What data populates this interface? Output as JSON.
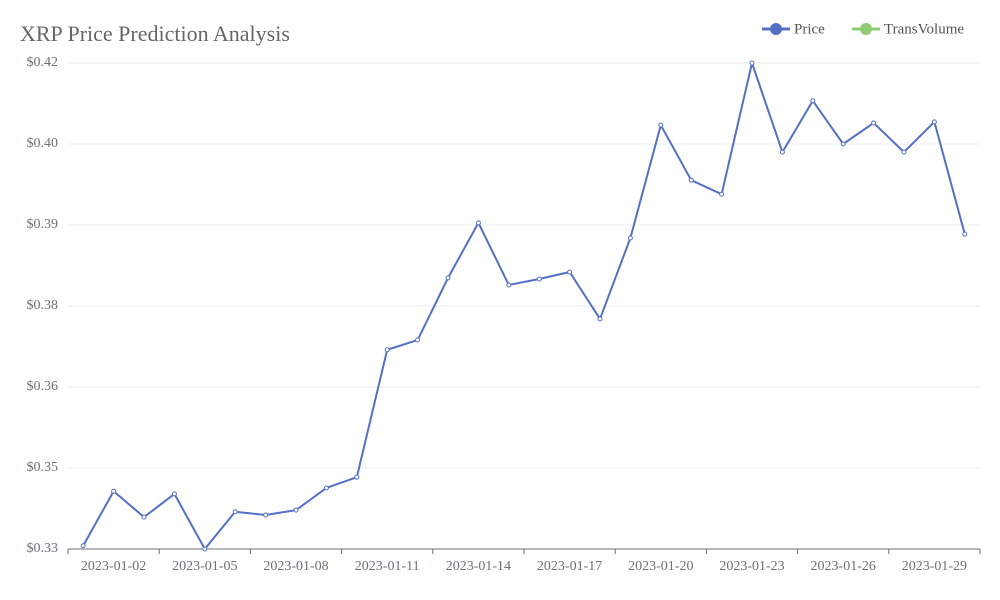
{
  "chart_data": {
    "type": "line",
    "title": "XRP Price Prediction Analysis",
    "x": [
      null,
      "2023-01-02",
      null,
      null,
      "2023-01-05",
      null,
      null,
      "2023-01-08",
      null,
      null,
      "2023-01-11",
      null,
      null,
      "2023-01-14",
      null,
      null,
      "2023-01-17",
      null,
      null,
      "2023-01-20",
      null,
      null,
      "2023-01-23",
      null,
      null,
      "2023-01-26",
      null,
      null,
      "2023-01-29",
      null
    ],
    "series": [
      {
        "name": "Price",
        "color": "#5470c6",
        "values": [
          0.3306,
          0.3407,
          0.3359,
          0.3402,
          0.33,
          0.3369,
          0.3363,
          0.3372,
          0.3413,
          0.3433,
          0.3669,
          0.3687,
          0.3802,
          0.3904,
          0.3789,
          0.38,
          0.3813,
          0.3726,
          0.3876,
          0.4085,
          0.3983,
          0.3957,
          0.42,
          0.4035,
          0.413,
          0.405,
          0.4089,
          0.4035,
          0.4091,
          0.3883
        ]
      },
      {
        "name": "TransVolume",
        "color": "#91cc75",
        "values": [
          null,
          null,
          null,
          null,
          null,
          null,
          null,
          null,
          null,
          null,
          null,
          null,
          null,
          null,
          null,
          null,
          null,
          null,
          null,
          null,
          null,
          null,
          null,
          null,
          null,
          null,
          null,
          null,
          null,
          null
        ]
      }
    ],
    "ylim": [
      0.33,
      0.42
    ],
    "yticks": [
      {
        "value": 0.33,
        "label": "$0.33"
      },
      {
        "value": 0.345,
        "label": "$0.35"
      },
      {
        "value": 0.36,
        "label": "$0.36"
      },
      {
        "value": 0.375,
        "label": "$0.38"
      },
      {
        "value": 0.39,
        "label": "$0.39"
      },
      {
        "value": 0.405,
        "label": "$0.40"
      },
      {
        "value": 0.42,
        "label": "$0.42"
      }
    ],
    "grid": true,
    "legend": "top-right"
  }
}
